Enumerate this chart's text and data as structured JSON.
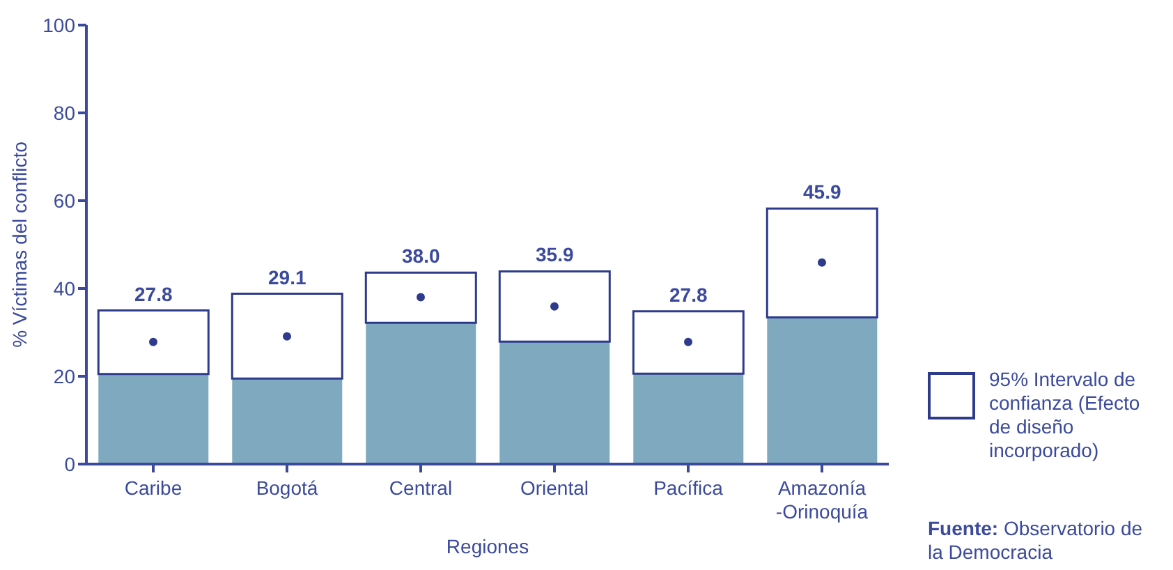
{
  "chart_data": {
    "type": "bar",
    "stacked": true,
    "categories": [
      "Caribe",
      "Bogotá",
      "Central",
      "Oriental",
      "Pacífica",
      "Amazonía -Orinoquía"
    ],
    "series": [
      {
        "color": "#7fa9bf",
        "values": [
          20.5,
          19.5,
          32.2,
          27.9,
          20.6,
          33.4
        ]
      },
      {
        "name": "95% Intervalo de confianza (Efecto de diseño incorporado)",
        "color": "#ffffff",
        "values": [
          14.5,
          19.3,
          11.4,
          16.0,
          14.2,
          24.8
        ]
      },
      {
        "type": "scatter",
        "color": "#2e3a8c",
        "values": [
          27.8,
          29.1,
          38.0,
          35.9,
          27.8,
          45.9
        ],
        "value_labels": [
          "27.8",
          "29.1",
          "38.0",
          "35.9",
          "27.8",
          "45.9"
        ]
      }
    ],
    "xlabel": "Regiones",
    "ylabel": "% Víctimas del conflicto",
    "ylim": [
      0,
      100
    ],
    "yticks": [
      0,
      20,
      40,
      60,
      80,
      100
    ],
    "legend": "right",
    "annotations": [
      "Fuente: Observatorio de la Democracia"
    ]
  }
}
